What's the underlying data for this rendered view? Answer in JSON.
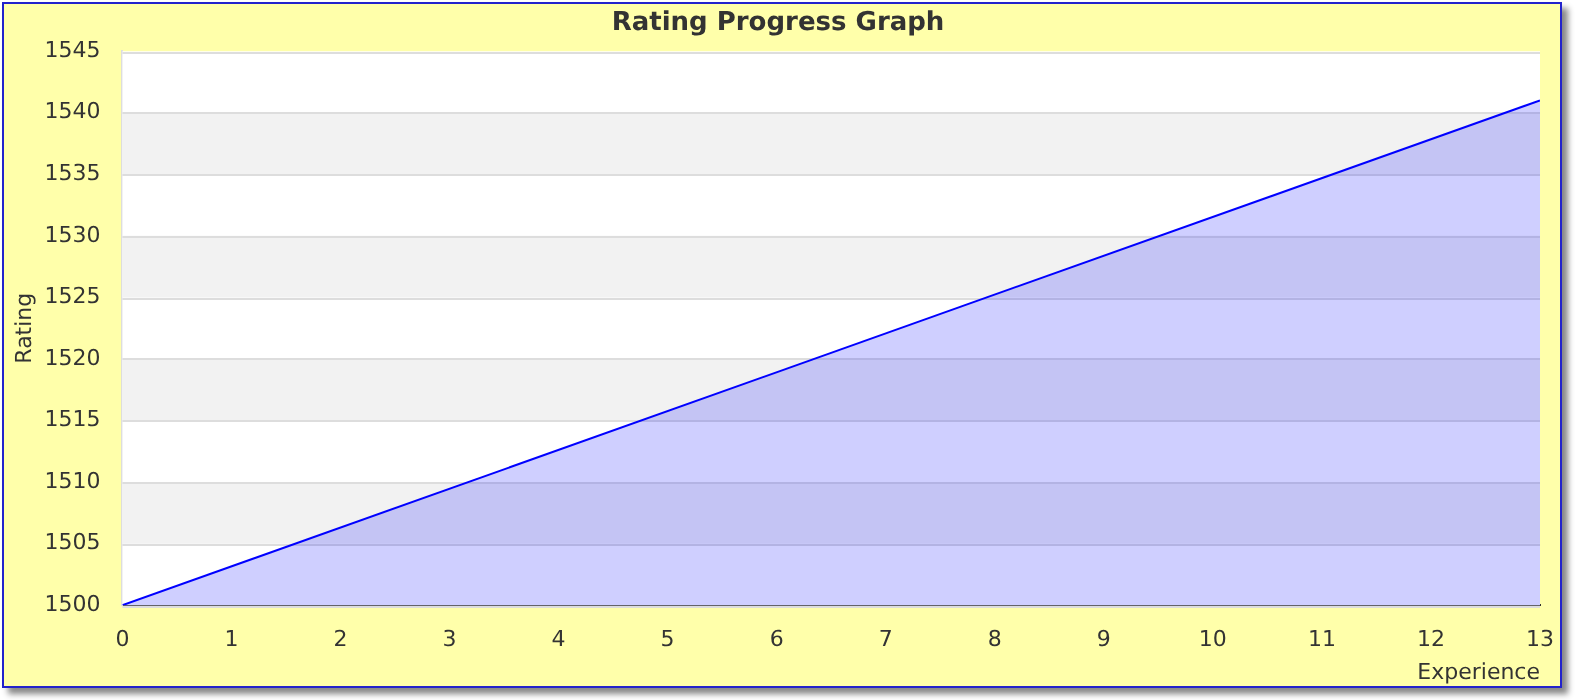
{
  "chart_data": {
    "type": "area",
    "title": "Rating Progress Graph",
    "xlabel": "Experience",
    "ylabel": "Rating",
    "x": [
      0,
      13
    ],
    "series": [
      {
        "color": "#0000ff",
        "values": [
          1500,
          1541
        ]
      }
    ],
    "xlim": [
      0,
      13
    ],
    "xticks": [
      0,
      1,
      2,
      3,
      4,
      5,
      6,
      7,
      8,
      9,
      10,
      11,
      12,
      13
    ],
    "ylim": [
      1500,
      1545
    ],
    "yticks": [
      1500,
      1505,
      1510,
      1515,
      1520,
      1525,
      1530,
      1535,
      1540,
      1545
    ],
    "grid": "y",
    "legend": false,
    "marker": "none"
  }
}
